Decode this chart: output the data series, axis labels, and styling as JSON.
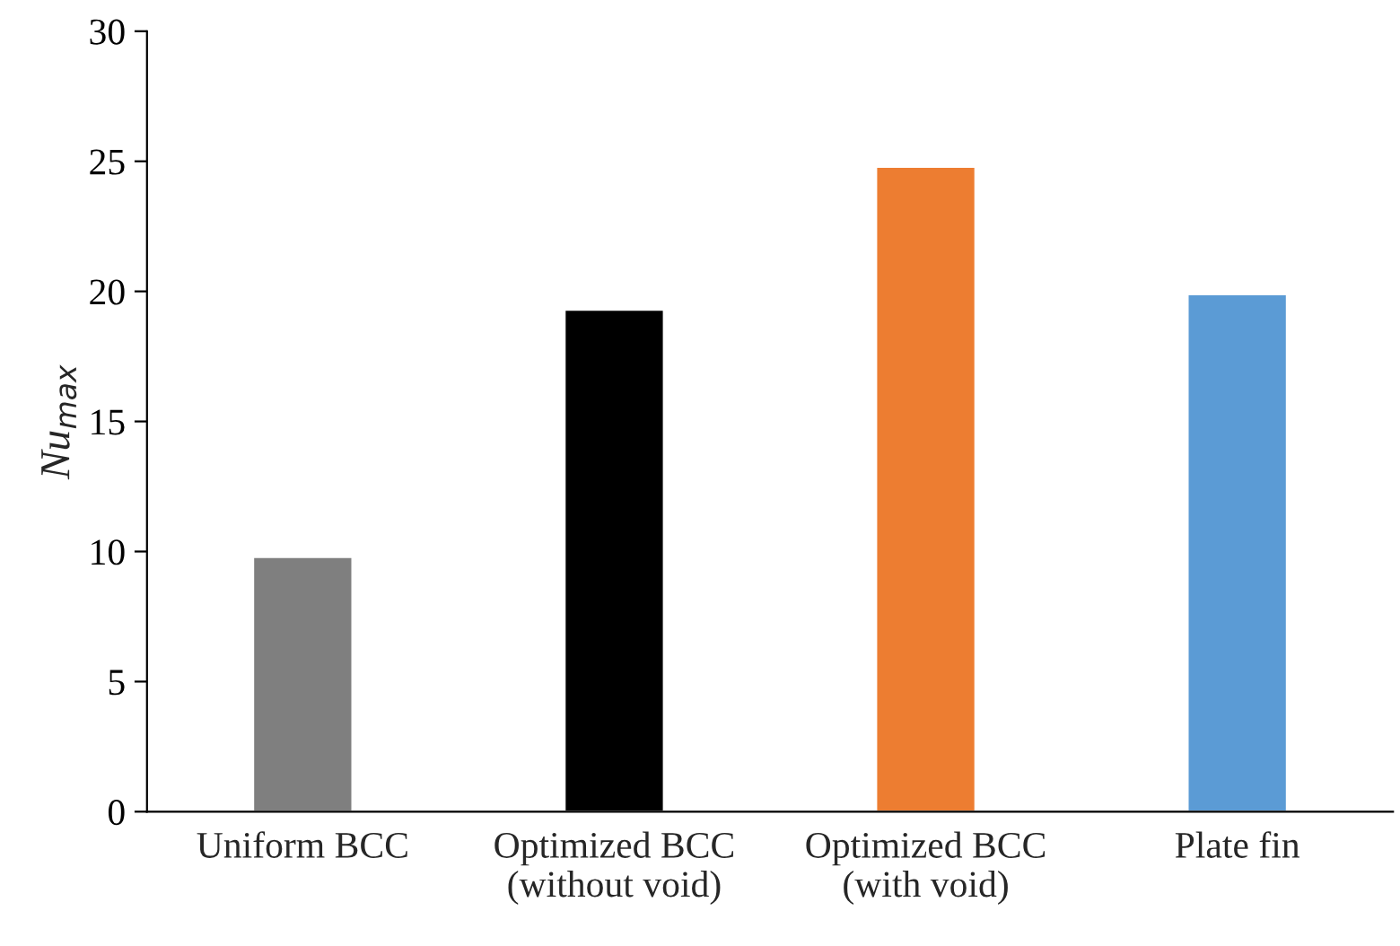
{
  "chart_data": {
    "type": "bar",
    "ylabel": "Nu$_{max}$",
    "categories": [
      "Uniform BCC",
      "Optimized BCC\n(without void)",
      "Optimized BCC\n(with void)",
      "Plate fin"
    ],
    "values": [
      9.8,
      19.3,
      24.8,
      19.9
    ],
    "colors": [
      "#7f7f7f",
      "#000000",
      "#ed7d31",
      "#5b9bd5"
    ],
    "ylim": [
      0,
      30
    ],
    "yticks": [
      0,
      5,
      10,
      15,
      20,
      25,
      30
    ],
    "grid": false,
    "legend": false
  }
}
